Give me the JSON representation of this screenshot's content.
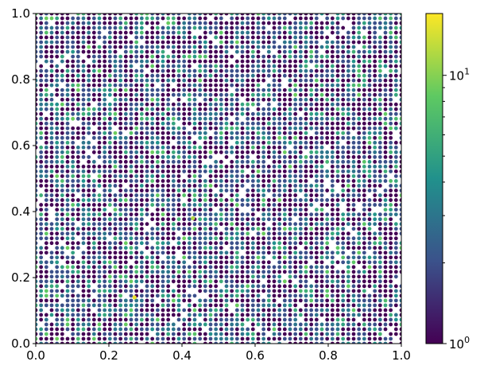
{
  "chart_data": {
    "type": "scatter",
    "title": "",
    "xlabel": "",
    "ylabel": "",
    "xlim": [
      0,
      1
    ],
    "ylim": [
      0,
      1
    ],
    "x_ticks": [
      "0.0",
      "0.2",
      "0.4",
      "0.6",
      "0.8",
      "1.0"
    ],
    "y_ticks": [
      "0.0",
      "0.2",
      "0.4",
      "0.6",
      "0.8",
      "1.0"
    ],
    "grid": false,
    "description": "",
    "points_layout": {
      "grid_points_per_axis": 70,
      "value_distribution": "mostly 1-3, occasional 4-8, rare 10-16",
      "missing_fraction": 0.05
    },
    "colormap": "viridis",
    "colormap_stops": [
      "#440154",
      "#3b528b",
      "#21918c",
      "#5ec962",
      "#fde725"
    ],
    "colorbar": {
      "scale": "log",
      "range": [
        1,
        17
      ],
      "major_tick_labels": [
        {
          "base": "10",
          "exp": "0",
          "value": 1
        },
        {
          "base": "10",
          "exp": "1",
          "value": 10
        }
      ],
      "minor_ticks": [
        2,
        3,
        4,
        5,
        6,
        7,
        8,
        9
      ]
    },
    "highlighted_points": [
      {
        "x": 0.27,
        "y": 0.14,
        "value": 16
      },
      {
        "x": 0.43,
        "y": 0.38,
        "value": 12
      }
    ]
  }
}
